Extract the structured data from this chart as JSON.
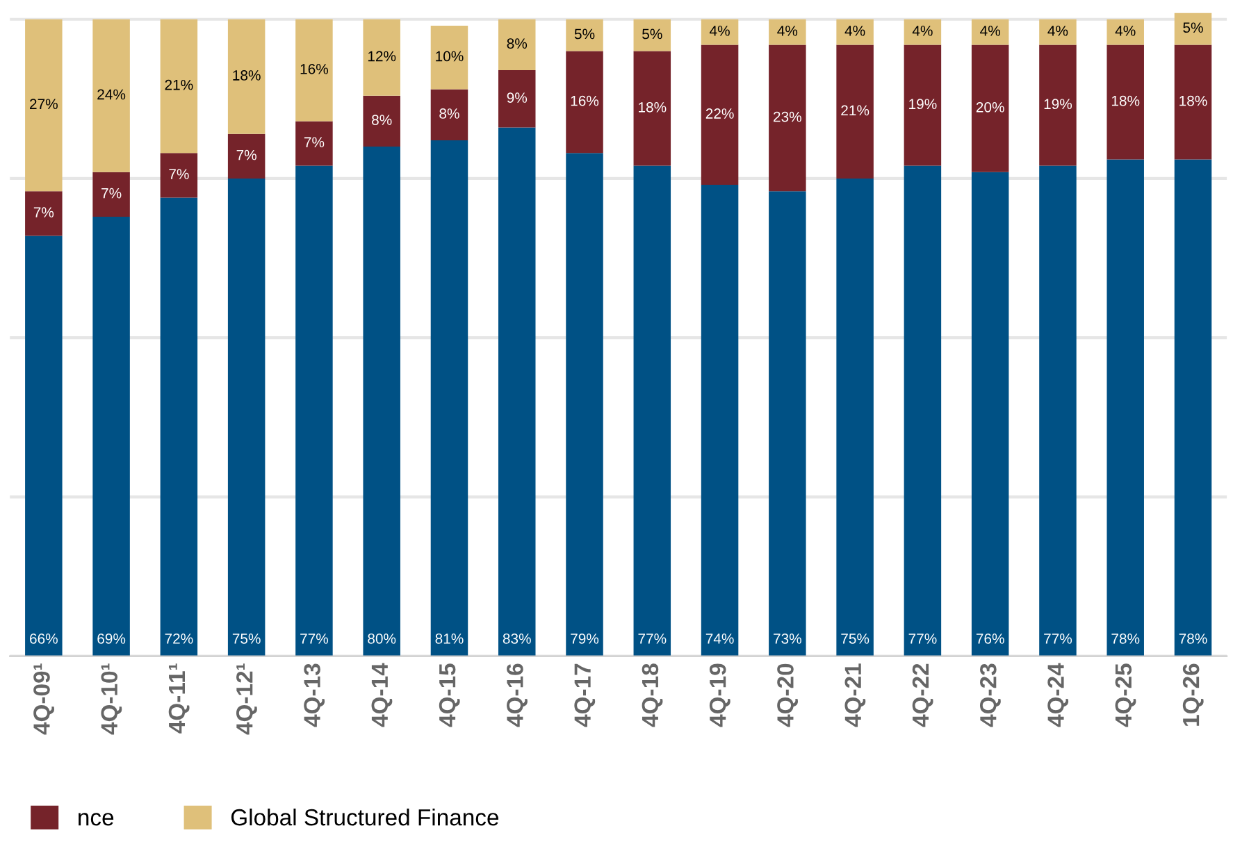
{
  "chart_data": {
    "type": "bar",
    "stacked": true,
    "grid": "y",
    "tick_labels": "x",
    "legend": "bottom left",
    "categories": [
      "4Q-09¹",
      "4Q-10¹",
      "4Q-11¹",
      "4Q-12¹",
      "4Q-13",
      "4Q-14",
      "4Q-15",
      "4Q-16",
      "4Q-17",
      "4Q-18",
      "4Q-19",
      "4Q-20",
      "4Q-21",
      "4Q-22",
      "4Q-23",
      "4Q-24",
      "4Q-25",
      "1Q-26"
    ],
    "series": [
      {
        "color": "#005185",
        "values": [
          66,
          69,
          72,
          75,
          77,
          80,
          81,
          83,
          79,
          77,
          74,
          73,
          75,
          77,
          76,
          77,
          78,
          78
        ],
        "value_labels": [
          "66%",
          "69%",
          "72%",
          "75%",
          "77%",
          "80%",
          "81%",
          "83%",
          "79%",
          "77%",
          "74%",
          "73%",
          "75%",
          "77%",
          "76%",
          "77%",
          "78%",
          "78%"
        ]
      },
      {
        "name": "nce",
        "color": "#75232a",
        "values": [
          7,
          7,
          7,
          7,
          7,
          8,
          8,
          9,
          16,
          18,
          22,
          23,
          21,
          19,
          20,
          19,
          18,
          18
        ],
        "value_labels": [
          "7%",
          "7%",
          "7%",
          "7%",
          "7%",
          "8%",
          "8%",
          "9%",
          "16%",
          "18%",
          "22%",
          "23%",
          "21%",
          "19%",
          "20%",
          "19%",
          "18%",
          "18%"
        ]
      },
      {
        "name": "Global Structured Finance",
        "color": "#dfc07a",
        "values": [
          27,
          24,
          21,
          18,
          16,
          12,
          10,
          8,
          5,
          5,
          4,
          4,
          4,
          4,
          4,
          4,
          4,
          5
        ],
        "value_labels": [
          "27%",
          "24%",
          "21%",
          "18%",
          "16%",
          "12%",
          "10%",
          "8%",
          "5%",
          "5%",
          "4%",
          "4%",
          "4%",
          "4%",
          "4%",
          "4%",
          "4%",
          "5%"
        ]
      }
    ]
  }
}
